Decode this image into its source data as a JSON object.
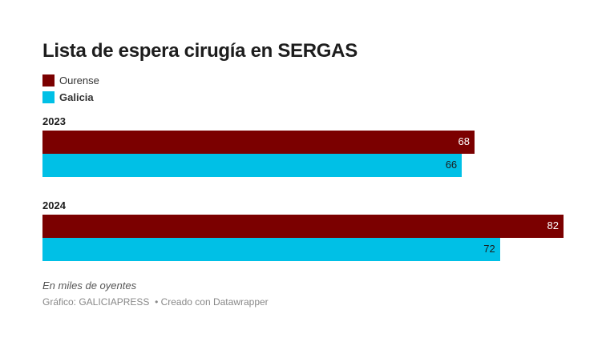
{
  "chart_data": {
    "type": "bar",
    "orientation": "horizontal",
    "title": "Lista de espera cirugía en SERGAS",
    "categories": [
      "2023",
      "2024"
    ],
    "series": [
      {
        "name": "Ourense",
        "color": "#7b0000",
        "values": [
          68,
          82
        ]
      },
      {
        "name": "Galicia",
        "color": "#00c0e6",
        "values": [
          66,
          72
        ]
      }
    ],
    "xlim": [
      0,
      82
    ],
    "grid": false,
    "legend": "top-left",
    "note": "En miles de oyentes",
    "source": "Gráfico: GALICIAPRESS",
    "credit": "• Creado con Datawrapper"
  }
}
